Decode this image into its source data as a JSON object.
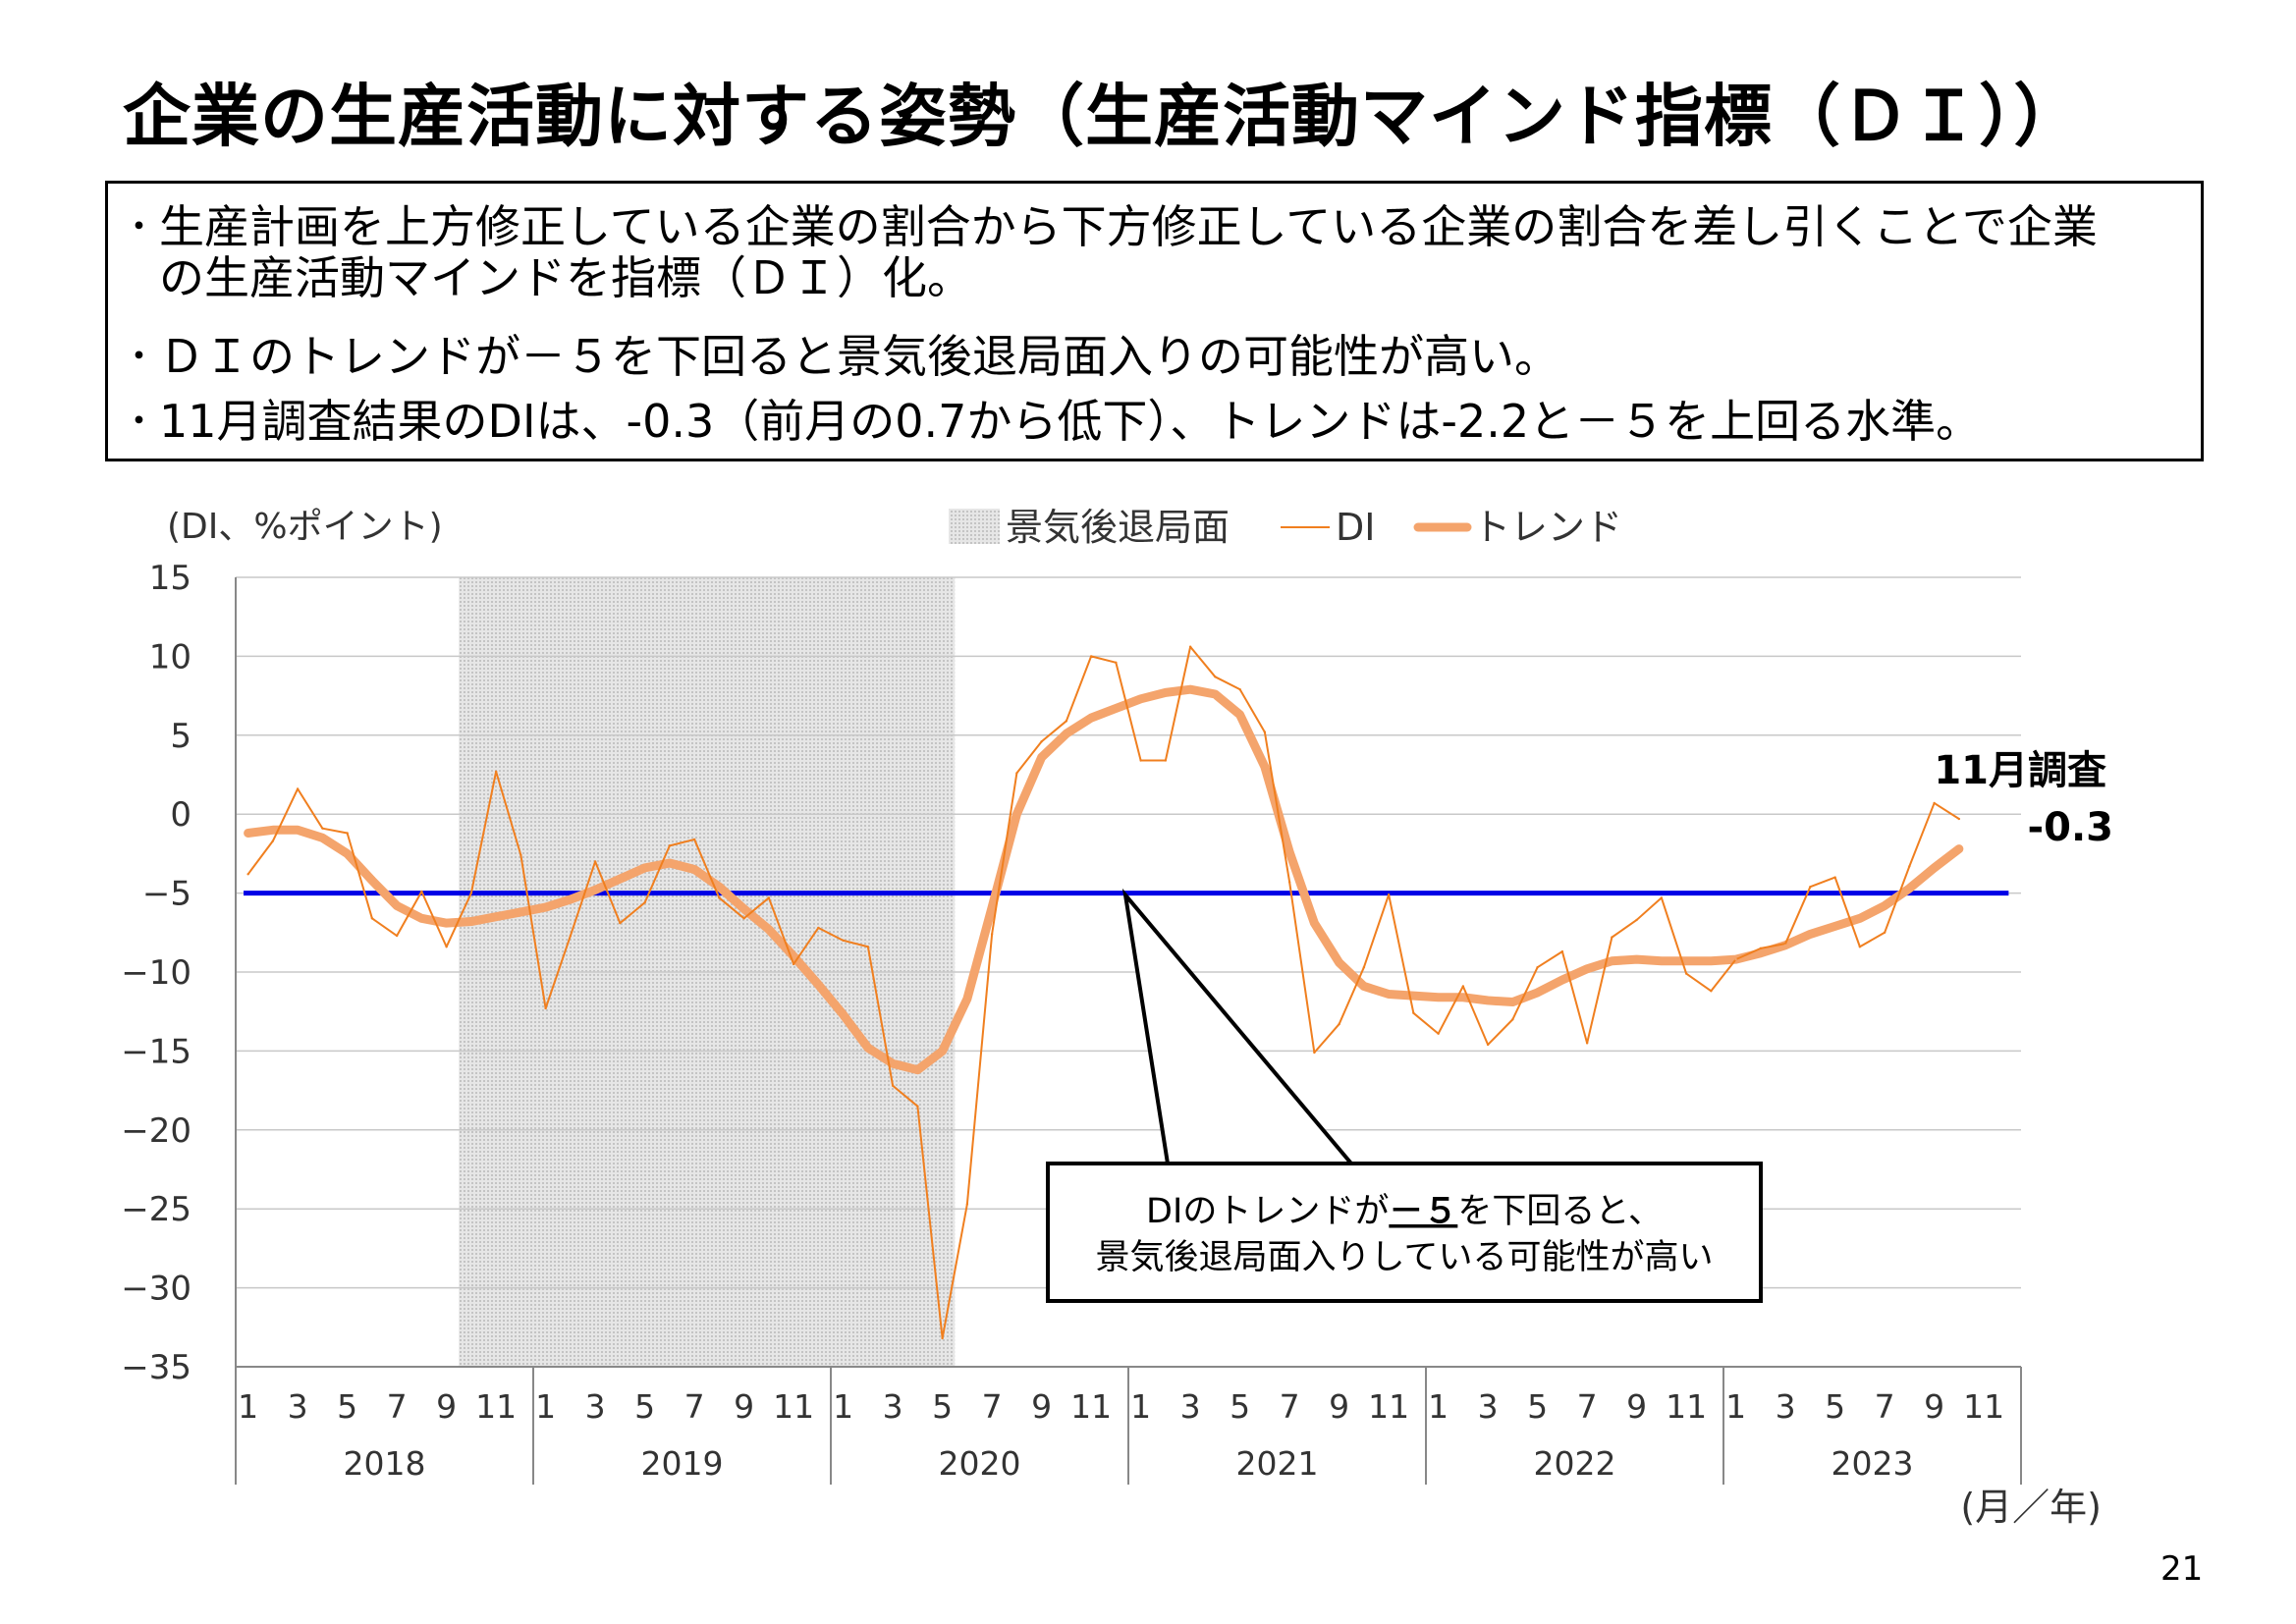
{
  "title": "企業の生産活動に対する姿勢（生産活動マインド指標（ＤＩ））",
  "summary": {
    "bullet_marker": "･",
    "bullets": [
      {
        "line1": "生産計画を上方修正している企業の割合から下方修正している企業の割合を差し引くことで企業",
        "line2": "の生産活動マインドを指標（ＤＩ）化。"
      },
      {
        "line1": "ＤＩのトレンドが－５を下回ると景気後退局面入りの可能性が高い。",
        "line2": ""
      },
      {
        "line1": "11月調査結果のDIは、-0.3（前月の0.7から低下）、トレンドは-2.2と－５を上回る水準。",
        "line2": ""
      }
    ]
  },
  "page_number": "21",
  "chart_data": {
    "type": "line",
    "ylabel": "(DI、%ポイント)",
    "xlabel": "(月／年)",
    "ylim": [
      -35,
      15
    ],
    "yticks": [
      "15",
      "10",
      "5",
      "0",
      "−5",
      "−10",
      "−15",
      "−20",
      "−25",
      "−30",
      "−35"
    ],
    "ytick_values": [
      15,
      10,
      5,
      0,
      -5,
      -10,
      -15,
      -20,
      -25,
      -30,
      -35
    ],
    "month_labels": [
      "1",
      "3",
      "5",
      "7",
      "9",
      "11"
    ],
    "years": [
      "2018",
      "2019",
      "2020",
      "2021",
      "2022",
      "2023"
    ],
    "legend": {
      "recession": "景気後退局面",
      "di": "DI",
      "trend": "トレンド"
    },
    "recession_shade": {
      "start": "2018-10",
      "end": "2020-05"
    },
    "threshold": -5,
    "colors": {
      "di": "#F07F1F",
      "trend": "#F4A46C",
      "threshold": "#0000E6",
      "recession": "#d9d9d9",
      "grid": "#c8c8c8"
    },
    "series": [
      {
        "name": "DI",
        "start": "2018-01",
        "values": [
          -3.8,
          -1.7,
          1.6,
          -0.9,
          -1.2,
          -6.6,
          -7.7,
          -4.9,
          -8.4,
          -5.0,
          2.7,
          -2.6,
          -12.3,
          -7.7,
          -3.0,
          -6.9,
          -5.6,
          -2.0,
          -1.6,
          -5.3,
          -6.6,
          -5.3,
          -9.5,
          -7.2,
          -8.0,
          -8.4,
          -17.2,
          -18.5,
          -33.2,
          -24.7,
          -7.6,
          2.6,
          4.6,
          5.9,
          10.0,
          9.6,
          3.4,
          3.4,
          10.6,
          8.7,
          7.9,
          5.2,
          -4.3,
          -15.1,
          -13.3,
          -9.7,
          -5.1,
          -12.6,
          -13.9,
          -10.9,
          -14.6,
          -13.0,
          -9.7,
          -8.7,
          -14.5,
          -7.8,
          -6.7,
          -5.3,
          -10.1,
          -11.2,
          -9.2,
          -8.5,
          -8.2,
          -4.6,
          -4.0,
          -8.4,
          -7.5,
          -3.3,
          0.7,
          -0.3
        ]
      },
      {
        "name": "トレンド",
        "start": "2018-01",
        "values": [
          -1.2,
          -1.0,
          -1.0,
          -1.5,
          -2.5,
          -4.2,
          -5.8,
          -6.6,
          -6.9,
          -6.8,
          -6.5,
          -6.2,
          -5.9,
          -5.4,
          -4.8,
          -4.1,
          -3.4,
          -3.1,
          -3.5,
          -4.6,
          -6.0,
          -7.3,
          -9.0,
          -10.8,
          -12.7,
          -14.8,
          -15.8,
          -16.2,
          -15.0,
          -11.7,
          -5.9,
          0.0,
          3.6,
          5.1,
          6.1,
          6.7,
          7.3,
          7.7,
          7.9,
          7.6,
          6.3,
          3.0,
          -2.4,
          -6.9,
          -9.4,
          -10.9,
          -11.4,
          -11.5,
          -11.6,
          -11.6,
          -11.8,
          -11.9,
          -11.3,
          -10.5,
          -9.8,
          -9.3,
          -9.2,
          -9.3,
          -9.3,
          -9.3,
          -9.2,
          -8.8,
          -8.3,
          -7.6,
          -7.1,
          -6.6,
          -5.8,
          -4.7,
          -3.4,
          -2.2
        ]
      }
    ],
    "callout": {
      "line1_pre": "DIのトレンドが",
      "line1_em": "－５",
      "line1_post": "を下回ると、",
      "line2": "景気後退局面入りしている可能性が高い"
    },
    "annotation": {
      "label": "11月調査",
      "value": "-0.3"
    }
  }
}
